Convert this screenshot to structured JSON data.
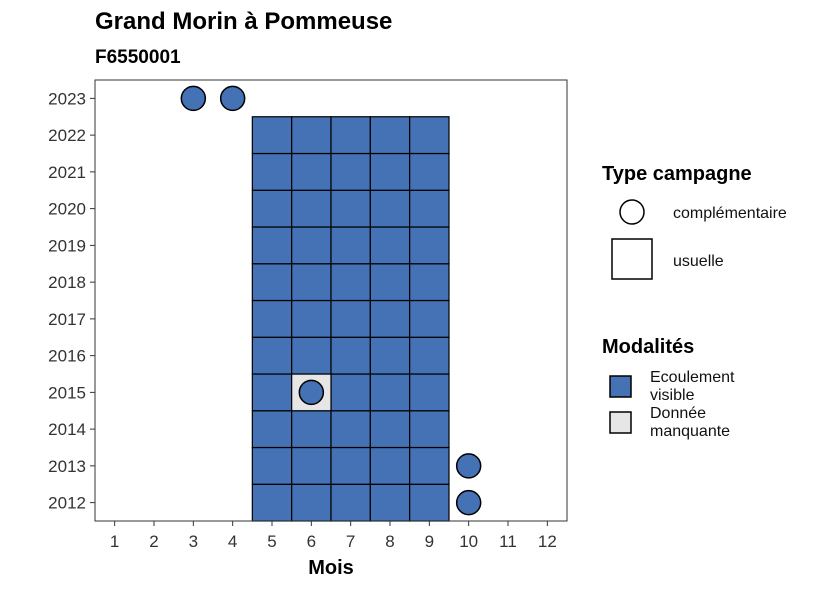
{
  "chart_data": {
    "type": "heatmap",
    "title": "Grand Morin à Pommeuse",
    "subtitle": "F6550001",
    "xlabel": "Mois",
    "ylabel": "",
    "x_ticks": [
      1,
      2,
      3,
      4,
      5,
      6,
      7,
      8,
      9,
      10,
      11,
      12
    ],
    "y_ticks": [
      2012,
      2013,
      2014,
      2015,
      2016,
      2017,
      2018,
      2019,
      2020,
      2021,
      2022,
      2023
    ],
    "xlim": [
      0.5,
      12.5
    ],
    "ylim": [
      2011.5,
      2023.5
    ],
    "grid": false,
    "legend_position": "right",
    "colors": {
      "ecoulement_visible": "#4472b4",
      "donnee_manquante": "#e6e6e6",
      "outline": "#000000"
    },
    "legend_shape": {
      "title": "Type campagne",
      "entries": [
        {
          "shape": "circle",
          "label": "complémentaire"
        },
        {
          "shape": "square",
          "label": "usuelle"
        }
      ]
    },
    "legend_fill": {
      "title": "Modalités",
      "entries": [
        {
          "key": "ecoulement_visible",
          "label_lines": [
            "Ecoulement",
            "visible"
          ]
        },
        {
          "key": "donnee_manquante",
          "label_lines": [
            "Donnée",
            "manquante"
          ]
        }
      ]
    },
    "usuelle": [
      {
        "year": 2012,
        "months": [
          5,
          6,
          7,
          8,
          9
        ],
        "modalite": "ecoulement_visible"
      },
      {
        "year": 2013,
        "months": [
          5,
          6,
          7,
          8,
          9
        ],
        "modalite": "ecoulement_visible"
      },
      {
        "year": 2014,
        "months": [
          5,
          6,
          7,
          8,
          9
        ],
        "modalite": "ecoulement_visible"
      },
      {
        "year": 2015,
        "months": [
          5,
          7,
          8,
          9
        ],
        "modalite": "ecoulement_visible"
      },
      {
        "year": 2015,
        "months": [
          6
        ],
        "modalite": "donnee_manquante"
      },
      {
        "year": 2016,
        "months": [
          5,
          6,
          7,
          8,
          9
        ],
        "modalite": "ecoulement_visible"
      },
      {
        "year": 2017,
        "months": [
          5,
          6,
          7,
          8,
          9
        ],
        "modalite": "ecoulement_visible"
      },
      {
        "year": 2018,
        "months": [
          5,
          6,
          7,
          8,
          9
        ],
        "modalite": "ecoulement_visible"
      },
      {
        "year": 2019,
        "months": [
          5,
          6,
          7,
          8,
          9
        ],
        "modalite": "ecoulement_visible"
      },
      {
        "year": 2020,
        "months": [
          5,
          6,
          7,
          8,
          9
        ],
        "modalite": "ecoulement_visible"
      },
      {
        "year": 2021,
        "months": [
          5,
          6,
          7,
          8,
          9
        ],
        "modalite": "ecoulement_visible"
      },
      {
        "year": 2022,
        "months": [
          5,
          6,
          7,
          8,
          9
        ],
        "modalite": "ecoulement_visible"
      }
    ],
    "complementaire": [
      {
        "year": 2012,
        "month": 10,
        "modalite": "ecoulement_visible"
      },
      {
        "year": 2013,
        "month": 10,
        "modalite": "ecoulement_visible"
      },
      {
        "year": 2015,
        "month": 6,
        "modalite": "ecoulement_visible"
      },
      {
        "year": 2023,
        "month": 3,
        "modalite": "ecoulement_visible"
      },
      {
        "year": 2023,
        "month": 4,
        "modalite": "ecoulement_visible"
      }
    ]
  }
}
